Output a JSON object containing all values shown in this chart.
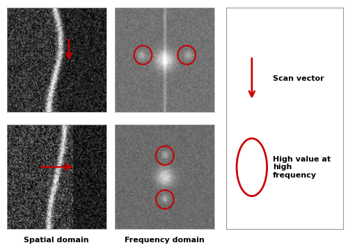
{
  "figure_width": 5.0,
  "figure_height": 3.62,
  "dpi": 100,
  "bg_color": "#ffffff",
  "spatial_label": "Spatial domain",
  "freq_label": "Frequency domain",
  "legend_arrow_label": "Scan vector",
  "legend_circle_label": "High value at\nhigh\nfrequency",
  "arrow_color": "#cc0000",
  "circle_color": "#cc0000",
  "label_fontsize": 8,
  "legend_fontsize": 8
}
